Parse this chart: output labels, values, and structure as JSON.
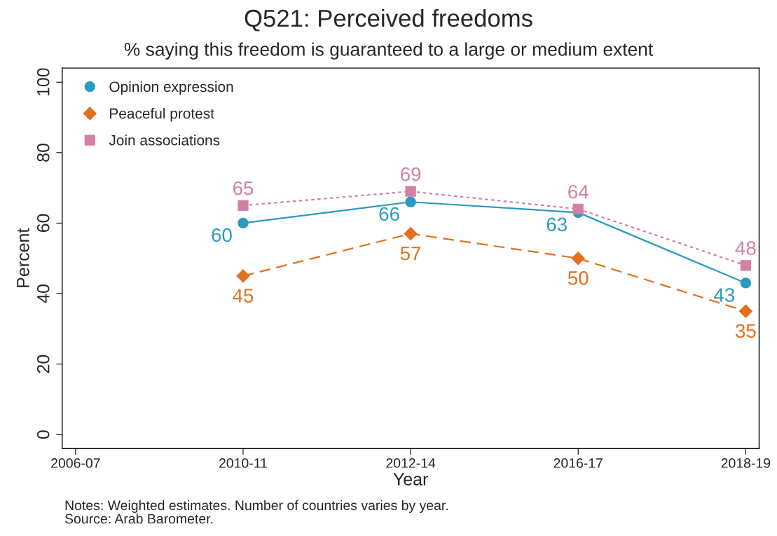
{
  "chart_data": {
    "type": "line",
    "title": "Q521: Perceived freedoms",
    "subtitle": "% saying this freedom is guaranteed to a large or medium extent",
    "xlabel": "Year",
    "ylabel": "Percent",
    "categories": [
      "2006-07",
      "2010-11",
      "2012-14",
      "2016-17",
      "2018-19"
    ],
    "series": [
      {
        "name": "Opinion expression",
        "color": "#2a9bbf",
        "marker": "circle",
        "line_style": "solid",
        "values": [
          null,
          60,
          66,
          63,
          43
        ]
      },
      {
        "name": "Peaceful protest",
        "color": "#e3701f",
        "marker": "diamond",
        "line_style": "dashed",
        "values": [
          null,
          45,
          57,
          50,
          35
        ]
      },
      {
        "name": "Join associations",
        "color": "#d37fa6",
        "marker": "square",
        "line_style": "dotted",
        "values": [
          null,
          65,
          69,
          64,
          48
        ]
      }
    ],
    "ylim": [
      -4,
      104
    ],
    "yticks": [
      0,
      20,
      40,
      60,
      80,
      100
    ],
    "grid": false,
    "legend": "top left",
    "data_labels": true,
    "annotations": [
      "Notes: Weighted estimates. Number of countries varies by year.",
      "Source: Arab Barometer."
    ]
  }
}
